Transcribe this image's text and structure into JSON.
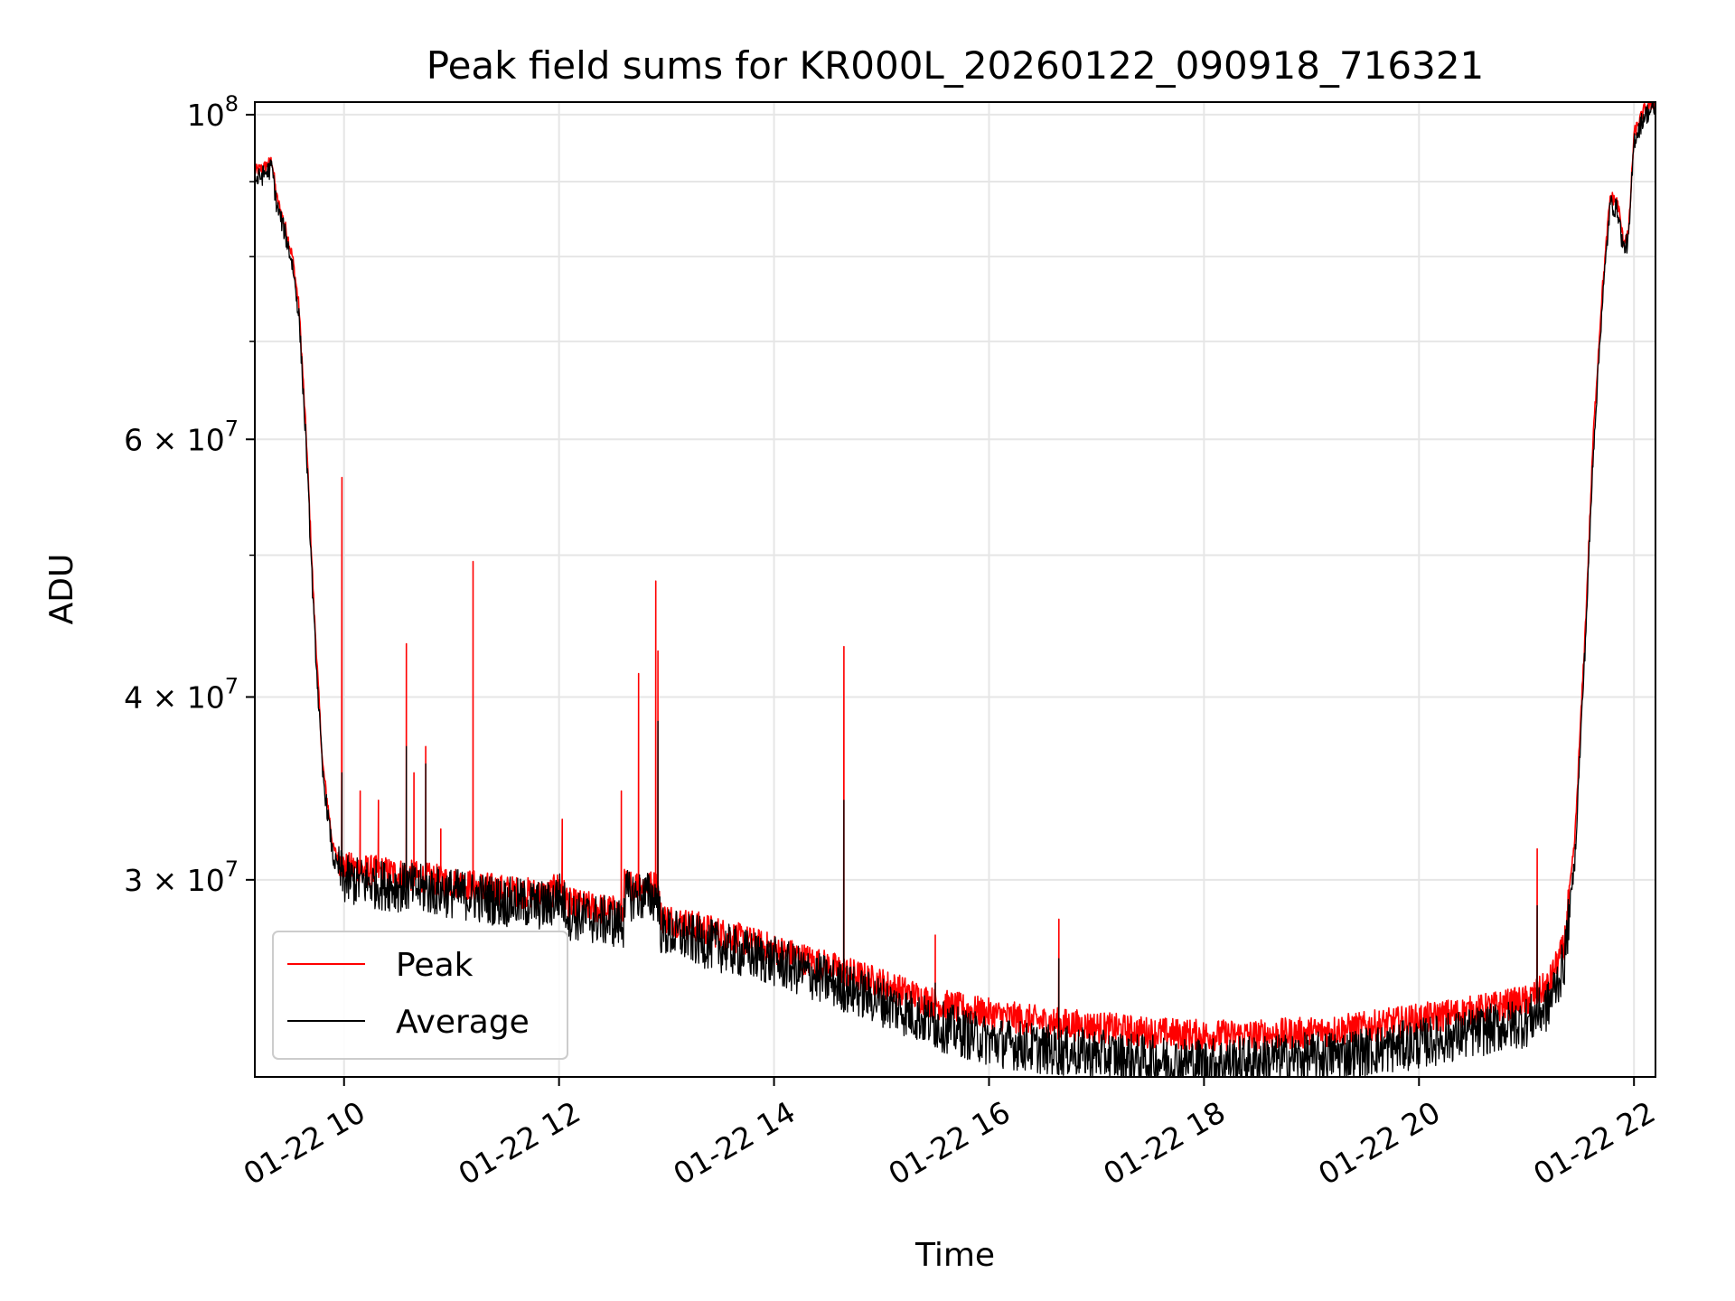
{
  "chart_data": {
    "type": "line",
    "title": "Peak field sums for KR000L_20260122_090918_716321",
    "xlabel": "Time",
    "ylabel": "ADU",
    "yscale": "log",
    "ylim": [
      22000000,
      102000000
    ],
    "xlim_hours": [
      9.17,
      22.2
    ],
    "x_ticks": [
      {
        "hour": 10,
        "label": "01-22 10"
      },
      {
        "hour": 12,
        "label": "01-22 12"
      },
      {
        "hour": 14,
        "label": "01-22 14"
      },
      {
        "hour": 16,
        "label": "01-22 16"
      },
      {
        "hour": 18,
        "label": "01-22 18"
      },
      {
        "hour": 20,
        "label": "01-22 20"
      },
      {
        "hour": 22,
        "label": "01-22 22"
      }
    ],
    "y_major_ticks": [
      {
        "value": 30000000,
        "mantissa": "3",
        "exponent": "7"
      },
      {
        "value": 40000000,
        "mantissa": "4",
        "exponent": "7"
      },
      {
        "value": 60000000,
        "mantissa": "6",
        "exponent": "7"
      },
      {
        "value": 100000000,
        "base": "10",
        "exponent": "8"
      }
    ],
    "y_minor_grid": [
      50000000,
      70000000,
      80000000,
      90000000
    ],
    "legend": {
      "location": "lower left",
      "entries": [
        "Peak",
        "Average"
      ]
    },
    "grid": true,
    "series": [
      {
        "name": "Peak",
        "color": "#ff0000",
        "baseline": [
          [
            9.17,
            91500000
          ],
          [
            9.25,
            92000000
          ],
          [
            9.33,
            93000000
          ],
          [
            9.37,
            88000000
          ],
          [
            9.45,
            84000000
          ],
          [
            9.52,
            80000000
          ],
          [
            9.58,
            74000000
          ],
          [
            9.65,
            60000000
          ],
          [
            9.72,
            46000000
          ],
          [
            9.8,
            36000000
          ],
          [
            9.9,
            31500000
          ],
          [
            10.0,
            30600000
          ],
          [
            10.5,
            30300000
          ],
          [
            11.0,
            29900000
          ],
          [
            11.5,
            29500000
          ],
          [
            11.9,
            29300000
          ],
          [
            12.0,
            29700000
          ],
          [
            12.1,
            28900000
          ],
          [
            12.6,
            28500000
          ],
          [
            12.6,
            29800000
          ],
          [
            12.92,
            29700000
          ],
          [
            12.95,
            28300000
          ],
          [
            13.5,
            27600000
          ],
          [
            14.0,
            26900000
          ],
          [
            14.5,
            26200000
          ],
          [
            15.0,
            25500000
          ],
          [
            15.5,
            24700000
          ],
          [
            16.0,
            24300000
          ],
          [
            16.5,
            24000000
          ],
          [
            17.0,
            23800000
          ],
          [
            17.5,
            23600000
          ],
          [
            18.0,
            23500000
          ],
          [
            18.5,
            23500000
          ],
          [
            19.0,
            23600000
          ],
          [
            19.5,
            23800000
          ],
          [
            20.0,
            24100000
          ],
          [
            20.5,
            24400000
          ],
          [
            21.0,
            24800000
          ],
          [
            21.2,
            25400000
          ],
          [
            21.35,
            27000000
          ],
          [
            21.45,
            32000000
          ],
          [
            21.55,
            45000000
          ],
          [
            21.62,
            60000000
          ],
          [
            21.7,
            75000000
          ],
          [
            21.78,
            88000000
          ],
          [
            21.85,
            87000000
          ],
          [
            21.9,
            82000000
          ],
          [
            21.95,
            83000000
          ],
          [
            22.0,
            97000000
          ],
          [
            22.1,
            101000000
          ],
          [
            22.2,
            102000000
          ]
        ],
        "spikes": [
          [
            9.98,
            56500000
          ],
          [
            10.15,
            34500000
          ],
          [
            10.32,
            34000000
          ],
          [
            10.58,
            43500000
          ],
          [
            10.65,
            35500000
          ],
          [
            10.76,
            37000000
          ],
          [
            10.9,
            32500000
          ],
          [
            11.2,
            49500000
          ],
          [
            12.03,
            33000000
          ],
          [
            12.58,
            34500000
          ],
          [
            12.74,
            41500000
          ],
          [
            12.9,
            48000000
          ],
          [
            12.92,
            43000000
          ],
          [
            14.65,
            43300000
          ],
          [
            15.5,
            27500000
          ],
          [
            16.65,
            28200000
          ],
          [
            21.1,
            31500000
          ]
        ],
        "noise": 0.025
      },
      {
        "name": "Average",
        "color": "#000000",
        "baseline": [
          [
            9.17,
            90000000
          ],
          [
            9.25,
            91000000
          ],
          [
            9.33,
            92000000
          ],
          [
            9.37,
            87000000
          ],
          [
            9.45,
            83000000
          ],
          [
            9.52,
            79000000
          ],
          [
            9.58,
            73000000
          ],
          [
            9.65,
            59000000
          ],
          [
            9.72,
            45000000
          ],
          [
            9.8,
            35500000
          ],
          [
            9.9,
            31000000
          ],
          [
            10.0,
            30000000
          ],
          [
            10.5,
            29700000
          ],
          [
            11.0,
            29400000
          ],
          [
            11.5,
            29000000
          ],
          [
            11.9,
            28800000
          ],
          [
            12.0,
            29300000
          ],
          [
            12.1,
            28400000
          ],
          [
            12.6,
            28000000
          ],
          [
            12.6,
            29300000
          ],
          [
            12.92,
            29200000
          ],
          [
            12.95,
            27700000
          ],
          [
            13.5,
            27000000
          ],
          [
            14.0,
            26400000
          ],
          [
            14.5,
            25600000
          ],
          [
            15.0,
            24800000
          ],
          [
            15.5,
            23900000
          ],
          [
            16.0,
            23300000
          ],
          [
            16.5,
            23000000
          ],
          [
            17.0,
            22800000
          ],
          [
            17.5,
            22600000
          ],
          [
            18.0,
            22500000
          ],
          [
            18.5,
            22600000
          ],
          [
            19.0,
            22700000
          ],
          [
            19.5,
            22900000
          ],
          [
            20.0,
            23200000
          ],
          [
            20.5,
            23600000
          ],
          [
            21.0,
            24000000
          ],
          [
            21.2,
            24600000
          ],
          [
            21.35,
            26300000
          ],
          [
            21.45,
            31000000
          ],
          [
            21.55,
            44000000
          ],
          [
            21.62,
            58500000
          ],
          [
            21.7,
            73500000
          ],
          [
            21.78,
            87000000
          ],
          [
            21.85,
            86000000
          ],
          [
            21.9,
            81000000
          ],
          [
            21.95,
            82000000
          ],
          [
            22.0,
            96000000
          ],
          [
            22.1,
            100000000
          ],
          [
            22.2,
            101000000
          ]
        ],
        "spikes": [
          [
            9.98,
            35500000
          ],
          [
            10.58,
            37000000
          ],
          [
            10.76,
            36000000
          ],
          [
            12.92,
            38500000
          ],
          [
            14.65,
            34000000
          ],
          [
            15.5,
            25500000
          ],
          [
            16.65,
            26500000
          ],
          [
            21.1,
            28800000
          ]
        ],
        "noise": 0.04
      }
    ]
  }
}
